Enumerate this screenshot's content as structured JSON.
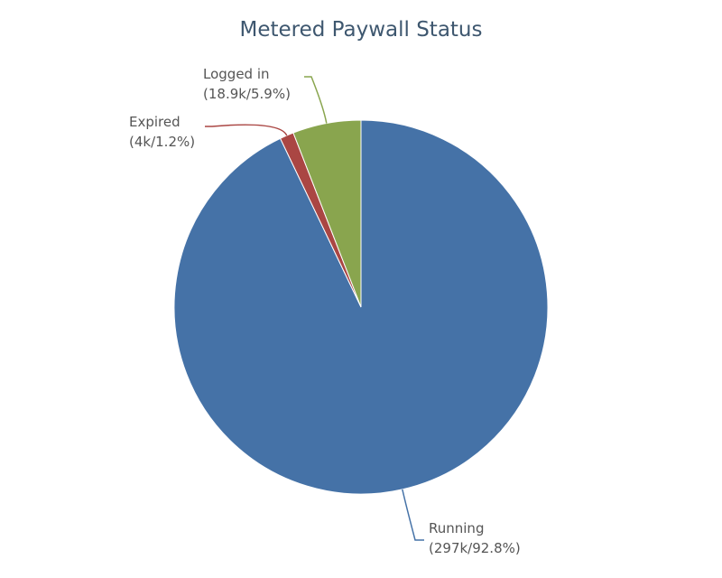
{
  "chart_data": {
    "type": "pie",
    "title": "Metered Paywall Status",
    "categories": [
      "Running",
      "Expired",
      "Logged in"
    ],
    "values": [
      92.8,
      1.2,
      5.9
    ],
    "value_labels": [
      "(297k/92.8%)",
      "(4k/1.2%)",
      "(18.9k/5.9%)"
    ],
    "colors": [
      "#4572a7",
      "#aa4643",
      "#89a54e"
    ]
  }
}
